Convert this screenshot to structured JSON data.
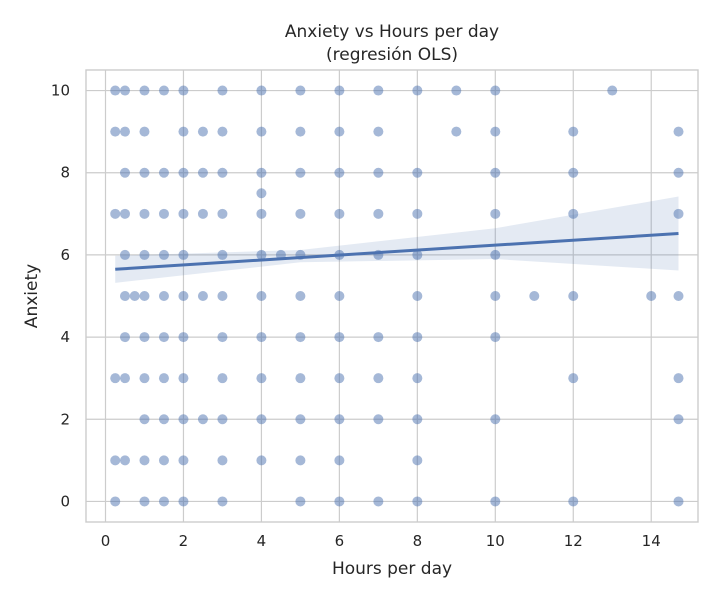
{
  "chart_data": {
    "type": "scatter",
    "title": "Anxiety vs Hours per day",
    "subtitle": "(regresión OLS)",
    "xlabel": "Hours per day",
    "ylabel": "Anxiety",
    "xlim": [
      -0.5,
      15.2
    ],
    "ylim": [
      -0.5,
      10.5
    ],
    "xticks": [
      0,
      2,
      4,
      6,
      8,
      10,
      12,
      14
    ],
    "yticks": [
      0,
      2,
      4,
      6,
      8,
      10
    ],
    "grid": true,
    "point_color": "#4c72b0",
    "points": [
      [
        0.25,
        10
      ],
      [
        0.5,
        10
      ],
      [
        1,
        10
      ],
      [
        1.5,
        10
      ],
      [
        2,
        10
      ],
      [
        3,
        10
      ],
      [
        4,
        10
      ],
      [
        5,
        10
      ],
      [
        6,
        10
      ],
      [
        7,
        10
      ],
      [
        8,
        10
      ],
      [
        9,
        10
      ],
      [
        10,
        10
      ],
      [
        13,
        10
      ],
      [
        0.25,
        9
      ],
      [
        0.5,
        9
      ],
      [
        1,
        9
      ],
      [
        2,
        9
      ],
      [
        2.5,
        9
      ],
      [
        3,
        9
      ],
      [
        4,
        9
      ],
      [
        5,
        9
      ],
      [
        6,
        9
      ],
      [
        7,
        9
      ],
      [
        9,
        9
      ],
      [
        10,
        9
      ],
      [
        12,
        9
      ],
      [
        14.7,
        9
      ],
      [
        0.5,
        8
      ],
      [
        1,
        8
      ],
      [
        1.5,
        8
      ],
      [
        2,
        8
      ],
      [
        2.5,
        8
      ],
      [
        3,
        8
      ],
      [
        4,
        8
      ],
      [
        5,
        8
      ],
      [
        6,
        8
      ],
      [
        7,
        8
      ],
      [
        8,
        8
      ],
      [
        10,
        8
      ],
      [
        12,
        8
      ],
      [
        14.7,
        8
      ],
      [
        4,
        7.5
      ],
      [
        0.25,
        7
      ],
      [
        0.5,
        7
      ],
      [
        1,
        7
      ],
      [
        1.5,
        7
      ],
      [
        2,
        7
      ],
      [
        2.5,
        7
      ],
      [
        3,
        7
      ],
      [
        4,
        7
      ],
      [
        5,
        7
      ],
      [
        6,
        7
      ],
      [
        7,
        7
      ],
      [
        8,
        7
      ],
      [
        10,
        7
      ],
      [
        12,
        7
      ],
      [
        14.7,
        7
      ],
      [
        0.5,
        6
      ],
      [
        1,
        6
      ],
      [
        1.5,
        6
      ],
      [
        2,
        6
      ],
      [
        3,
        6
      ],
      [
        4,
        6
      ],
      [
        4.5,
        6
      ],
      [
        5,
        6
      ],
      [
        6,
        6
      ],
      [
        7,
        6
      ],
      [
        8,
        6
      ],
      [
        10,
        6
      ],
      [
        0.5,
        5
      ],
      [
        0.75,
        5
      ],
      [
        1,
        5
      ],
      [
        1.5,
        5
      ],
      [
        2,
        5
      ],
      [
        2.5,
        5
      ],
      [
        3,
        5
      ],
      [
        4,
        5
      ],
      [
        5,
        5
      ],
      [
        6,
        5
      ],
      [
        8,
        5
      ],
      [
        10,
        5
      ],
      [
        11,
        5
      ],
      [
        12,
        5
      ],
      [
        14,
        5
      ],
      [
        14.7,
        5
      ],
      [
        0.5,
        4
      ],
      [
        1,
        4
      ],
      [
        1.5,
        4
      ],
      [
        2,
        4
      ],
      [
        3,
        4
      ],
      [
        4,
        4
      ],
      [
        5,
        4
      ],
      [
        6,
        4
      ],
      [
        7,
        4
      ],
      [
        8,
        4
      ],
      [
        10,
        4
      ],
      [
        0.25,
        3
      ],
      [
        0.5,
        3
      ],
      [
        1,
        3
      ],
      [
        1.5,
        3
      ],
      [
        2,
        3
      ],
      [
        3,
        3
      ],
      [
        4,
        3
      ],
      [
        5,
        3
      ],
      [
        6,
        3
      ],
      [
        7,
        3
      ],
      [
        8,
        3
      ],
      [
        12,
        3
      ],
      [
        14.7,
        3
      ],
      [
        1,
        2
      ],
      [
        1.5,
        2
      ],
      [
        2,
        2
      ],
      [
        2.5,
        2
      ],
      [
        3,
        2
      ],
      [
        4,
        2
      ],
      [
        5,
        2
      ],
      [
        6,
        2
      ],
      [
        7,
        2
      ],
      [
        8,
        2
      ],
      [
        10,
        2
      ],
      [
        14.7,
        2
      ],
      [
        0.25,
        1
      ],
      [
        0.5,
        1
      ],
      [
        1,
        1
      ],
      [
        1.5,
        1
      ],
      [
        2,
        1
      ],
      [
        3,
        1
      ],
      [
        4,
        1
      ],
      [
        5,
        1
      ],
      [
        6,
        1
      ],
      [
        8,
        1
      ],
      [
        0.25,
        0
      ],
      [
        1,
        0
      ],
      [
        1.5,
        0
      ],
      [
        2,
        0
      ],
      [
        3,
        0
      ],
      [
        5,
        0
      ],
      [
        6,
        0
      ],
      [
        7,
        0
      ],
      [
        8,
        0
      ],
      [
        10,
        0
      ],
      [
        12,
        0
      ],
      [
        14.7,
        0
      ]
    ],
    "regression": {
      "x_start": 0.25,
      "x_end": 14.7,
      "y_start": 5.65,
      "y_end": 6.52,
      "ci_upper": [
        [
          0.25,
          5.98
        ],
        [
          5,
          6.12
        ],
        [
          10,
          6.65
        ],
        [
          14.7,
          7.42
        ]
      ],
      "ci_lower": [
        [
          0.25,
          5.32
        ],
        [
          5,
          5.82
        ],
        [
          10,
          5.9
        ],
        [
          14.7,
          5.62
        ]
      ]
    }
  }
}
